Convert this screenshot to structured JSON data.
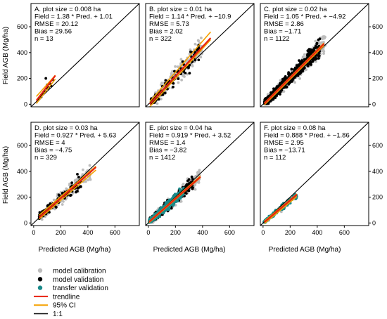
{
  "figure": {
    "x_axis_label": "Predicted AGB (Mg/ha)",
    "y_axis_label": "Field AGB (Mg/ha)",
    "x_ticks": [
      0,
      200,
      400,
      600
    ],
    "y_ticks": [
      0,
      200,
      400,
      600
    ]
  },
  "colors": {
    "model_calibration": "#bdbdbd",
    "model_validation": "#000000",
    "transfer_validation": "#1a8a8a",
    "trendline": "#e8210f",
    "ci": "#f5a100",
    "one_to_one": "#000000"
  },
  "legend": [
    {
      "key": "model_calibration",
      "label": "model calibration",
      "kind": "point"
    },
    {
      "key": "model_validation",
      "label": "model validation",
      "kind": "point"
    },
    {
      "key": "transfer_validation",
      "label": "transfer validation",
      "kind": "point"
    },
    {
      "key": "trendline",
      "label": "trendline",
      "kind": "line"
    },
    {
      "key": "ci",
      "label": "95% CI",
      "kind": "line"
    },
    {
      "key": "one_to_one",
      "label": "1:1",
      "kind": "line"
    }
  ],
  "chart_data": [
    {
      "type": "scatter",
      "panel": "A",
      "title": "A. plot size = 0.008 ha",
      "annotations": [
        "A. plot size = 0.008 ha",
        "Field = 1.38 * Pred. + 1.01",
        "RMSE = 20.12",
        "Bias = 29.56",
        "n = 13"
      ],
      "xlim": [
        -20,
        780
      ],
      "ylim": [
        -20,
        780
      ],
      "trend": {
        "slope": 1.38,
        "intercept": 1.01,
        "x_range": [
          20,
          160
        ]
      },
      "ci_upper": [
        [
          20,
          60
        ],
        [
          160,
          225
        ]
      ],
      "ci_lower": [
        [
          20,
          5
        ],
        [
          160,
          195
        ]
      ],
      "series": [
        {
          "name": "model validation",
          "points": [
            [
              40,
              40
            ],
            [
              60,
              70
            ],
            [
              80,
              100
            ],
            [
              90,
              200
            ],
            [
              100,
              120
            ],
            [
              110,
              130
            ],
            [
              120,
              160
            ],
            [
              70,
              80
            ],
            [
              100,
              150
            ],
            [
              130,
              140
            ],
            [
              85,
              95
            ],
            [
              140,
              190
            ],
            [
              55,
              55
            ]
          ]
        }
      ]
    },
    {
      "type": "scatter",
      "panel": "B",
      "title": "B. plot size = 0.01 ha",
      "annotations": [
        "B. plot size = 0.01 ha",
        "Field = 1.14 * Pred. + −10.9",
        "RMSE = 5.73",
        "Bias = 2.02",
        "n = 322"
      ],
      "xlim": [
        -20,
        780
      ],
      "ylim": [
        -20,
        780
      ],
      "trend": {
        "slope": 1.14,
        "intercept": -10.9,
        "x_range": [
          10,
          460
        ]
      },
      "ci_upper": [
        [
          10,
          20
        ],
        [
          460,
          560
        ]
      ],
      "ci_lower": [
        [
          10,
          -20
        ],
        [
          460,
          500
        ]
      ],
      "series": [
        {
          "name": "model calibration",
          "seed": 11,
          "n": 230,
          "x_range": [
            20,
            400
          ],
          "slope": 1.14,
          "intercept": -10.9,
          "noise": 70
        },
        {
          "name": "model validation",
          "seed": 12,
          "n": 90,
          "x_range": [
            20,
            380
          ],
          "slope": 1.14,
          "intercept": -10.9,
          "noise": 60
        }
      ]
    },
    {
      "type": "scatter",
      "panel": "C",
      "title": "C. plot size = 0.02 ha",
      "annotations": [
        "C. plot size = 0.02 ha",
        "Field = 1.05 * Pred. + −4.92",
        "RMSE = 2.86",
        "Bias = −1.71",
        "n = 1122"
      ],
      "xlim": [
        -20,
        780
      ],
      "ylim": [
        -20,
        780
      ],
      "trend": {
        "slope": 1.05,
        "intercept": -4.92,
        "x_range": [
          10,
          450
        ]
      },
      "ci_upper": [
        [
          10,
          10
        ],
        [
          450,
          475
        ]
      ],
      "ci_lower": [
        [
          10,
          -5
        ],
        [
          450,
          455
        ]
      ],
      "series": [
        {
          "name": "model calibration",
          "seed": 21,
          "n": 520,
          "x_range": [
            10,
            460
          ],
          "slope": 1.05,
          "intercept": -4.92,
          "noise": 55
        },
        {
          "name": "model validation",
          "seed": 22,
          "n": 560,
          "x_range": [
            10,
            420
          ],
          "slope": 1.05,
          "intercept": -4.92,
          "noise": 50
        }
      ]
    },
    {
      "type": "scatter",
      "panel": "D",
      "title": "D. plot size = 0.03 ha",
      "annotations": [
        "D. plot size = 0.03 ha",
        "Field = 0.927 * Pred. + 5.63",
        "RMSE = 4",
        "Bias = −4.75",
        "n = 329"
      ],
      "xlim": [
        -20,
        780
      ],
      "ylim": [
        -20,
        780
      ],
      "trend": {
        "slope": 0.927,
        "intercept": 5.63,
        "x_range": [
          40,
          460
        ]
      },
      "ci_upper": [
        [
          40,
          60
        ],
        [
          460,
          440
        ]
      ],
      "ci_lower": [
        [
          40,
          30
        ],
        [
          460,
          410
        ]
      ],
      "series": [
        {
          "name": "model calibration",
          "seed": 31,
          "n": 200,
          "x_range": [
            40,
            420
          ],
          "slope": 0.927,
          "intercept": 5.63,
          "noise": 50
        },
        {
          "name": "model validation",
          "seed": 32,
          "n": 110,
          "x_range": [
            40,
            350
          ],
          "slope": 0.927,
          "intercept": 5.63,
          "noise": 45
        }
      ]
    },
    {
      "type": "scatter",
      "panel": "E",
      "title": "E. plot size = 0.04 ha",
      "annotations": [
        "E. plot size = 0.04 ha",
        "Field = 0.919 * Pred. + 3.52",
        "RMSE = 1.4",
        "Bias = −3.82",
        "n = 1412"
      ],
      "xlim": [
        -20,
        780
      ],
      "ylim": [
        -20,
        780
      ],
      "trend": {
        "slope": 0.919,
        "intercept": 3.52,
        "x_range": [
          5,
          385
        ]
      },
      "ci_upper": [
        [
          5,
          12
        ],
        [
          385,
          365
        ]
      ],
      "ci_lower": [
        [
          5,
          2
        ],
        [
          385,
          352
        ]
      ],
      "series": [
        {
          "name": "model calibration",
          "seed": 41,
          "n": 380,
          "x_range": [
            10,
            380
          ],
          "slope": 0.919,
          "intercept": 3.52,
          "noise": 45
        },
        {
          "name": "model validation",
          "seed": 42,
          "n": 300,
          "x_range": [
            10,
            330
          ],
          "slope": 0.919,
          "intercept": 3.52,
          "noise": 40
        },
        {
          "name": "transfer validation",
          "seed": 43,
          "n": 420,
          "x_range": [
            5,
            260
          ],
          "slope": 0.919,
          "intercept": 3.52,
          "noise": 30
        }
      ]
    },
    {
      "type": "scatter",
      "panel": "F",
      "title": "F. plot size = 0.08 ha",
      "annotations": [
        "F. plot size = 0.08 ha",
        "Field = 0.888 * Pred. + −1.86",
        "RMSE = 2.95",
        "Bias = −13.71",
        "n = 112"
      ],
      "xlim": [
        -20,
        780
      ],
      "ylim": [
        -20,
        780
      ],
      "trend": {
        "slope": 0.888,
        "intercept": -1.86,
        "x_range": [
          10,
          250
        ]
      },
      "ci_upper": [
        [
          10,
          15
        ],
        [
          250,
          225
        ]
      ],
      "ci_lower": [
        [
          10,
          -5
        ],
        [
          250,
          205
        ]
      ],
      "series": [
        {
          "name": "model calibration",
          "seed": 51,
          "n": 40,
          "x_range": [
            20,
            250
          ],
          "slope": 0.888,
          "intercept": -1.86,
          "noise": 25
        },
        {
          "name": "model validation",
          "seed": 52,
          "n": 10,
          "x_range": [
            50,
            160
          ],
          "slope": 0.888,
          "intercept": -1.86,
          "noise": 20
        },
        {
          "name": "transfer validation",
          "seed": 53,
          "n": 200,
          "x_range": [
            5,
            250
          ],
          "slope": 0.888,
          "intercept": -1.86,
          "noise": 20
        }
      ]
    }
  ]
}
